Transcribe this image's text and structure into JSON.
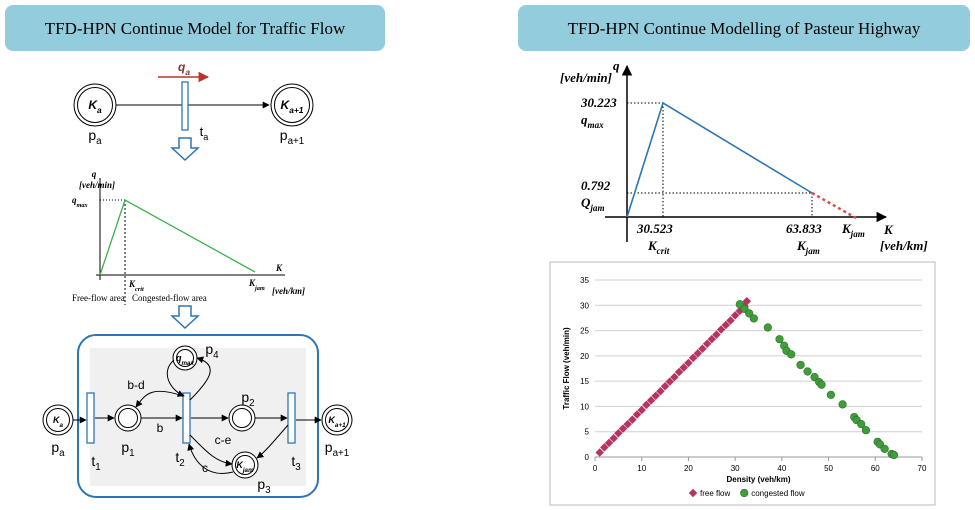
{
  "headers": {
    "left": "TFD-HPN Continue Model for Traffic Flow",
    "right": "TFD-HPN Continue Modelling of Pasteur Highway"
  },
  "top_net": {
    "place_in": {
      "main": "K",
      "sub": "a"
    },
    "place_in_name": {
      "main": "p",
      "sub": "a"
    },
    "transition": {
      "main": "t",
      "sub": "a"
    },
    "flow": {
      "main": "q",
      "sub": "a"
    },
    "place_out": {
      "main": "K",
      "sub": "a+1"
    },
    "place_out_name": {
      "main": "p",
      "sub": "a+1"
    }
  },
  "sketch": {
    "y_axis": "q",
    "y_unit": "[veh/min]",
    "q_max": {
      "main": "q",
      "sub": "max"
    },
    "k_crit": {
      "main": "K",
      "sub": "crit"
    },
    "k_jam": {
      "main": "K",
      "sub": "jam"
    },
    "x_axis": "K",
    "x_unit": "[veh/km]",
    "free_area": "Free-flow area",
    "congested_area": "Congested-flow area"
  },
  "net": {
    "place_in": {
      "main": "K",
      "sub": "a"
    },
    "place_in_name": {
      "main": "p",
      "sub": "a"
    },
    "t1": {
      "main": "t",
      "sub": "1"
    },
    "p1": {
      "main": "p",
      "sub": "1"
    },
    "arc_bd": "b-d",
    "arc_b": "b",
    "place_qmax": {
      "main": "q",
      "sub": "max"
    },
    "p4": {
      "main": "p",
      "sub": "4"
    },
    "t2": {
      "main": "t",
      "sub": "2"
    },
    "arc_ce": "c-e",
    "arc_c": "c",
    "p2": {
      "main": "p",
      "sub": "2"
    },
    "place_kjam": {
      "main": "K",
      "sub": "jam"
    },
    "p3": {
      "main": "p",
      "sub": "3"
    },
    "t3": {
      "main": "t",
      "sub": "3"
    },
    "place_out": {
      "main": "K",
      "sub": "a+1"
    },
    "place_out_name": {
      "main": "p",
      "sub": "a+1"
    }
  },
  "fundamental": {
    "y_axis": "q",
    "y_unit": "[veh/min]",
    "q_max_value": 30.223,
    "q_max": {
      "main": "q",
      "sub": "max"
    },
    "q_jam_value": 0.792,
    "q_jam": {
      "main": "Q",
      "sub": "jam"
    },
    "k_crit_value": 30.523,
    "k_crit": {
      "main": "K",
      "sub": "crit"
    },
    "k_jam_value": 63.833,
    "k_jam": {
      "main": "K",
      "sub": "jam"
    },
    "k_jam_end": {
      "main": "K",
      "sub": "jam"
    },
    "x_axis": "K",
    "x_unit": "[veh/km]"
  },
  "chart_data": {
    "type": "scatter",
    "xlabel": "Density (veh/km)",
    "ylabel": "Traffic Flow (veh/min)",
    "xlim": [
      0,
      70
    ],
    "ylim": [
      0,
      35
    ],
    "xticks": [
      0,
      10,
      20,
      30,
      40,
      50,
      60,
      70
    ],
    "yticks": [
      0,
      5,
      10,
      15,
      20,
      25,
      30,
      35
    ],
    "grid": true,
    "legend": "bottom",
    "series": [
      {
        "name": "free flow",
        "color": "#b8345e",
        "x": [
          1,
          2,
          3,
          4,
          5,
          6,
          7,
          8,
          9,
          10,
          11,
          12,
          13,
          14,
          15,
          16,
          17,
          18,
          19,
          20,
          21,
          22,
          23,
          24,
          25,
          26,
          27,
          28,
          29,
          30,
          31,
          32,
          32.5
        ],
        "values": [
          0.9,
          1.9,
          2.8,
          3.7,
          4.7,
          5.6,
          6.5,
          7.4,
          8.4,
          9.3,
          10.3,
          11.2,
          12.1,
          13,
          14,
          14.9,
          15.8,
          16.8,
          17.7,
          18.6,
          19.6,
          20.5,
          21.4,
          22.4,
          23.3,
          24.2,
          25.2,
          26.1,
          27,
          28,
          28.9,
          29.8,
          30.8
        ]
      },
      {
        "name": "congested flow",
        "color": "#3f9e3a",
        "x": [
          31,
          32,
          33,
          34,
          37,
          39.5,
          40.5,
          41,
          42,
          44,
          45.5,
          47,
          48,
          48.5,
          50.5,
          53,
          55.5,
          56,
          57,
          58,
          60.5,
          61,
          62,
          63.5,
          64
        ],
        "values": [
          30.2,
          29.3,
          28.4,
          27.4,
          25.6,
          23.3,
          22,
          21,
          20.3,
          18.2,
          16.9,
          15.8,
          14.8,
          14.3,
          12.3,
          10.4,
          7.9,
          7.3,
          6.5,
          5.3,
          3,
          2.5,
          1.6,
          0.6,
          0.4
        ]
      }
    ]
  }
}
